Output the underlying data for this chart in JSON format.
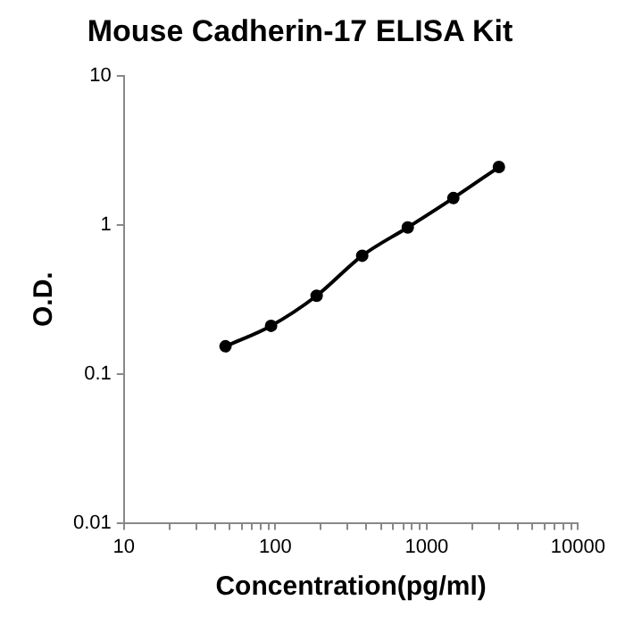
{
  "chart_data": {
    "type": "line",
    "title": "Mouse Cadherin-17 ELISA Kit",
    "xlabel": "Concentration(pg/ml)",
    "ylabel": "O.D.",
    "x": [
      46.875,
      93.75,
      187.5,
      375,
      750,
      1500,
      3000
    ],
    "series": [
      {
        "color": "#000000",
        "values": [
          0.153,
          0.21,
          0.334,
          0.62,
          0.96,
          1.51,
          2.44
        ]
      }
    ],
    "log": "xy",
    "grid": false,
    "legend": false,
    "marker": "circle",
    "line_style": "solid",
    "xlim": [
      10,
      10000
    ],
    "ylim": [
      0.01,
      10
    ],
    "xticks": [
      10,
      {
        "value": 20,
        "label": null
      },
      {
        "value": 30,
        "label": null
      },
      {
        "value": 40,
        "label": null
      },
      {
        "value": 50,
        "label": null
      },
      {
        "value": 60,
        "label": null
      },
      {
        "value": 70,
        "label": null
      },
      {
        "value": 80,
        "label": null
      },
      {
        "value": 90,
        "label": null
      },
      100,
      {
        "value": 200,
        "label": null
      },
      {
        "value": 300,
        "label": null
      },
      {
        "value": 400,
        "label": null
      },
      {
        "value": 500,
        "label": null
      },
      {
        "value": 600,
        "label": null
      },
      {
        "value": 700,
        "label": null
      },
      {
        "value": 800,
        "label": null
      },
      {
        "value": 900,
        "label": null
      },
      1000,
      {
        "value": 2000,
        "label": null
      },
      {
        "value": 3000,
        "label": null
      },
      {
        "value": 4000,
        "label": null
      },
      {
        "value": 5000,
        "label": null
      },
      {
        "value": 6000,
        "label": null
      },
      {
        "value": 7000,
        "label": null
      },
      {
        "value": 8000,
        "label": null
      },
      {
        "value": 9000,
        "label": null
      },
      10000
    ],
    "yticks": [
      0.01,
      0.1,
      1,
      10
    ]
  }
}
